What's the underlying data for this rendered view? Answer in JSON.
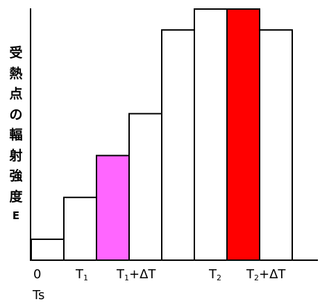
{
  "chart_data": {
    "type": "bar",
    "ylabel_chars": [
      "受",
      "熱",
      "点",
      "の",
      "輻",
      "射",
      "強",
      "度",
      "E"
    ],
    "values": [
      1,
      3,
      5,
      7,
      11,
      12,
      12,
      11
    ],
    "bar_colors": [
      "#ffffff",
      "#ffffff",
      "#ff66ff",
      "#ffffff",
      "#ffffff",
      "#ffffff",
      "#ff0000",
      "#ffffff"
    ],
    "ylim": [
      0,
      12
    ],
    "x_ticks": [
      {
        "main": "0",
        "sub": "",
        "tail": ""
      },
      {
        "main": "T",
        "sub": "1",
        "tail": ""
      },
      {
        "main": "T",
        "sub": "1",
        "tail": "+ΔT"
      },
      {
        "main": "T",
        "sub": "2",
        "tail": ""
      },
      {
        "main": "T",
        "sub": "2",
        "tail": "+ΔT"
      }
    ],
    "x_subtitle": "Ts"
  }
}
